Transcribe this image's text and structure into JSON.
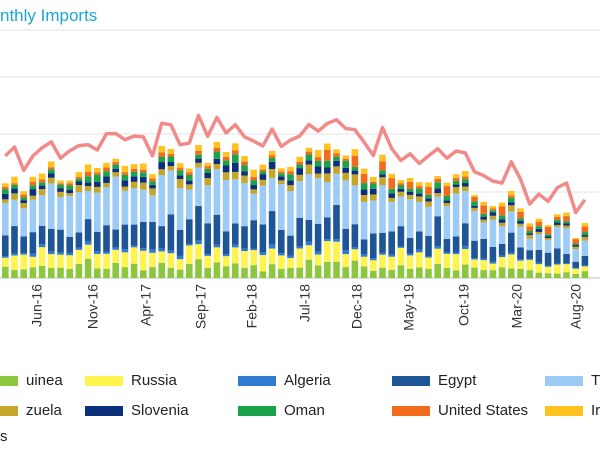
{
  "chart_data": {
    "type": "bar",
    "title": "nthly Imports",
    "x_tick_labels": [
      "Jun-16",
      "Nov-16",
      "Apr-17",
      "Sep-17",
      "Feb-18",
      "Jul-18",
      "Dec-18",
      "May-19",
      "Oct-19",
      "Mar-20",
      "Aug-20"
    ],
    "grid": "horizontal",
    "legend_placement": "bottom",
    "series": [
      {
        "name": "uinea",
        "color": "#8dc63f"
      },
      {
        "name": "Russia",
        "color": "#fff34d"
      },
      {
        "name": "Algeria",
        "color": "#2e7bd0"
      },
      {
        "name": "Egypt",
        "color": "#1d5596"
      },
      {
        "name": "Trin",
        "color": "#9ccbf5"
      },
      {
        "name": "zuela",
        "color": "#c4a72a"
      },
      {
        "name": "Slovenia",
        "color": "#0b2f7a"
      },
      {
        "name": "Oman",
        "color": "#1aa34a"
      },
      {
        "name": "United States",
        "color": "#f26b1d"
      },
      {
        "name": "Iran",
        "color": "#ffc21f"
      }
    ],
    "total_line": {
      "color": "#f28a8a"
    },
    "footer_fragment": "s"
  }
}
